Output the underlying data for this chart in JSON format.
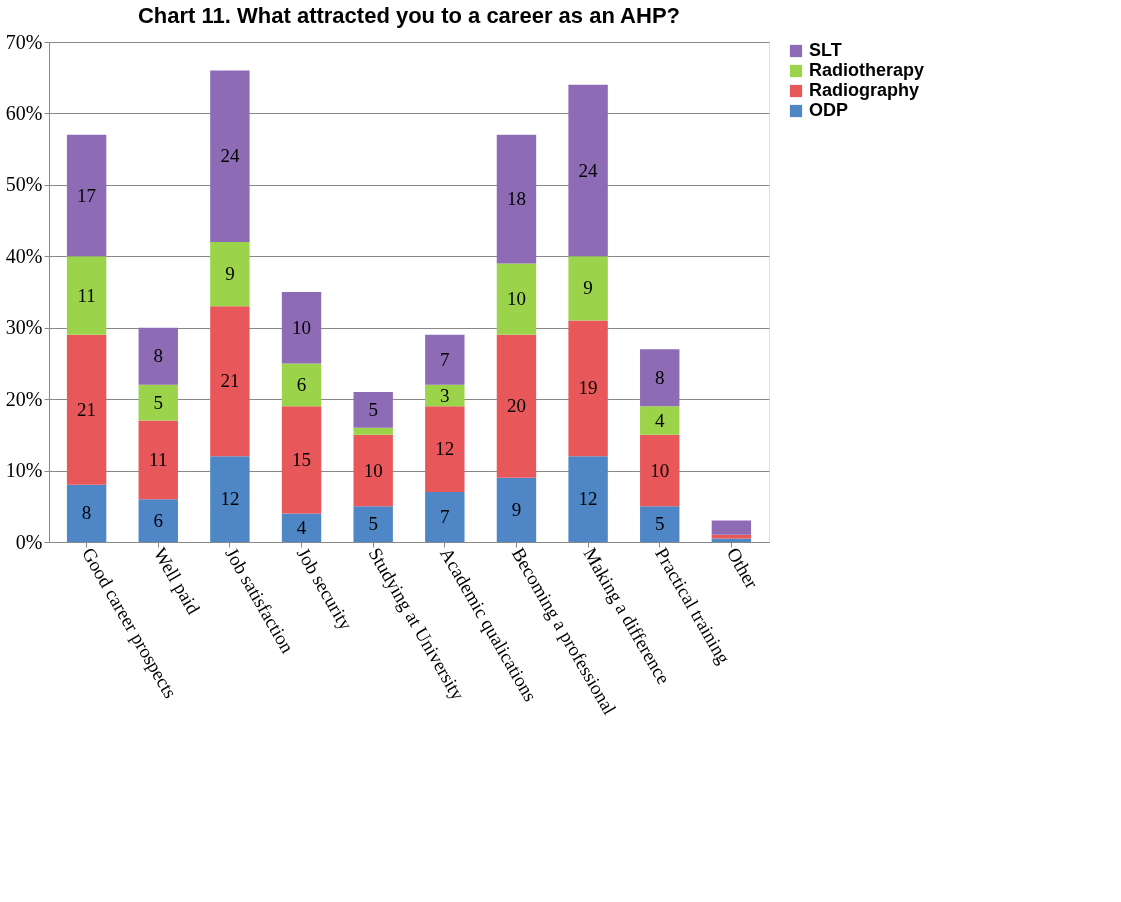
{
  "chart_data": {
    "type": "bar",
    "title": "Chart 11. What attracted you to a career as an AHP?",
    "categories": [
      "Good career prospects",
      "Well paid",
      "Job satisfaction",
      "Job security",
      "Studying at University",
      "Academic qualications",
      "Becoming a professional",
      "Making a difference",
      "Practical training",
      "Other"
    ],
    "stacked": true,
    "series": [
      {
        "name": "ODP",
        "color": "#4f86c6",
        "values": [
          8,
          6,
          12,
          4,
          5,
          7,
          9,
          12,
          5,
          0.5
        ],
        "value_labels": [
          "8",
          "6",
          "12",
          "4",
          "5",
          "7",
          "9",
          "12",
          "5",
          null
        ]
      },
      {
        "name": "Radiography",
        "color": "#e8585a",
        "values": [
          21,
          11,
          21,
          15,
          10,
          12,
          20,
          19,
          10,
          0.5
        ],
        "value_labels": [
          "21",
          "11",
          "21",
          "15",
          "10",
          "12",
          "20",
          "19",
          "10",
          null
        ]
      },
      {
        "name": "Radiotherapy",
        "color": "#9bd34a",
        "values": [
          11,
          5,
          9,
          6,
          1,
          3,
          10,
          9,
          4,
          null
        ],
        "value_labels": [
          "11",
          "5",
          "9",
          "6",
          null,
          "3",
          "10",
          "9",
          "4",
          null
        ]
      },
      {
        "name": "SLT",
        "color": "#8e6bb5",
        "values": [
          17,
          8,
          24,
          10,
          5,
          7,
          18,
          24,
          8,
          2
        ],
        "value_labels": [
          "17",
          "8",
          "24",
          "10",
          "5",
          "7",
          "18",
          "24",
          "8",
          null
        ]
      }
    ],
    "ylim": [
      0,
      70
    ],
    "yticks": [
      {
        "value": 0,
        "label": "0%"
      },
      {
        "value": 10,
        "label": "10%"
      },
      {
        "value": 20,
        "label": "20%"
      },
      {
        "value": 30,
        "label": "30%"
      },
      {
        "value": 40,
        "label": "40%"
      },
      {
        "value": 50,
        "label": "50%"
      },
      {
        "value": 60,
        "label": "60%"
      },
      {
        "value": 70,
        "label": "70%"
      }
    ],
    "grid": "y",
    "legend": "right"
  }
}
